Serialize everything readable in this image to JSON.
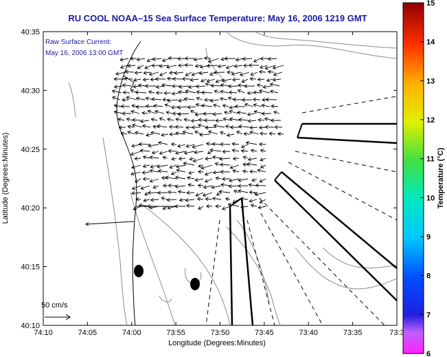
{
  "title": "RU COOL  NOAA–15  Sea Surface Temperature:  May 16, 2006 1219 GMT",
  "legend": {
    "line1": "Raw Surface Current:",
    "line2": "May 16, 2006 13:00 GMT"
  },
  "scale_label": "50 cm/s",
  "axes": {
    "xlabel": "Longitude (Degrees:Minutes)",
    "ylabel": "Latitude (Degrees:Minutes)",
    "x_ticks": [
      "74:10",
      "74:05",
      "74:00",
      "73:55",
      "73:50",
      "73:45",
      "73:40",
      "73:35",
      "73:3"
    ],
    "y_ticks": [
      "40:10",
      "40:15",
      "40:20",
      "40:25",
      "40:30",
      "40:35"
    ]
  },
  "colorbar": {
    "label": "Temperature (°C)",
    "ticks": [
      "6",
      "7",
      "8",
      "9",
      "10",
      "11",
      "12",
      "13",
      "14",
      "15"
    ],
    "min": 6,
    "max": 15
  },
  "colors": {
    "title": "#1a1aa0",
    "vectors": "#000000",
    "contours": "#808080"
  }
}
